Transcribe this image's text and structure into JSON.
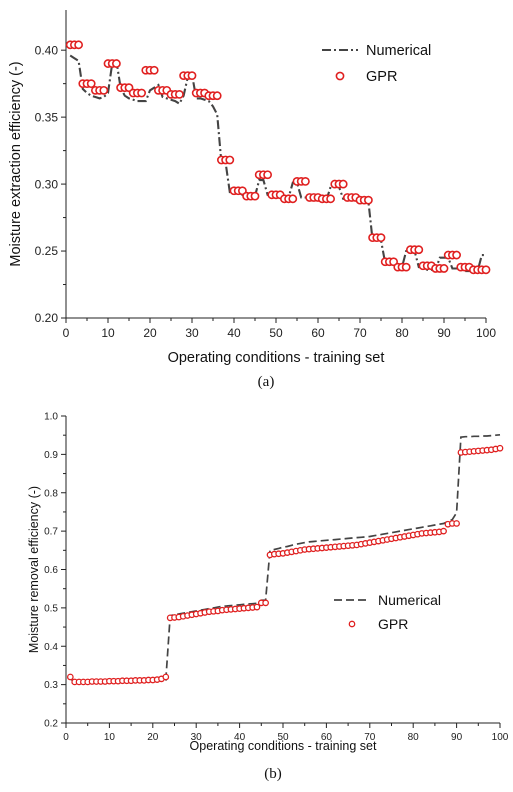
{
  "chart_data": [
    {
      "type": "line",
      "caption": "(a)",
      "xlabel": "Operating conditions - training set",
      "ylabel": "Moisture extraction efficiency (-)",
      "xlim": [
        0,
        100
      ],
      "ylim": [
        0.2,
        0.43
      ],
      "xticks": [
        "0",
        "10",
        "20",
        "30",
        "40",
        "50",
        "60",
        "70",
        "80",
        "90",
        "100"
      ],
      "yticks": [
        "0.20",
        "0.25",
        "0.30",
        "0.35",
        "0.40"
      ],
      "legend_position": "top-right",
      "series": [
        {
          "name": "Numerical",
          "style": "dash-dot",
          "color": "#444444",
          "x": [
            1,
            2,
            3,
            4,
            5,
            6,
            7,
            8,
            9,
            10,
            11,
            12,
            13,
            14,
            15,
            16,
            17,
            18,
            19,
            20,
            21,
            22,
            23,
            24,
            25,
            26,
            27,
            28,
            29,
            30,
            31,
            32,
            33,
            34,
            35,
            36,
            37,
            38,
            39,
            40,
            41,
            42,
            43,
            44,
            45,
            46,
            47,
            48,
            49,
            50,
            51,
            52,
            53,
            54,
            55,
            56,
            57,
            58,
            59,
            60,
            61,
            62,
            63,
            64,
            65,
            66,
            67,
            68,
            69,
            70,
            71,
            72,
            73,
            74,
            75,
            76,
            77,
            78,
            79,
            80,
            81,
            82,
            83,
            84,
            85,
            86,
            87,
            88,
            89,
            90,
            91,
            92,
            93,
            94,
            95,
            96,
            97,
            98,
            99,
            100
          ],
          "y": [
            0.396,
            0.394,
            0.392,
            0.371,
            0.368,
            0.366,
            0.365,
            0.364,
            0.365,
            0.368,
            0.39,
            0.392,
            0.372,
            0.366,
            0.364,
            0.363,
            0.362,
            0.362,
            0.362,
            0.37,
            0.372,
            0.374,
            0.365,
            0.364,
            0.363,
            0.362,
            0.36,
            0.366,
            0.38,
            0.382,
            0.364,
            0.364,
            0.363,
            0.362,
            0.358,
            0.352,
            0.316,
            0.316,
            0.294,
            0.294,
            0.294,
            0.292,
            0.292,
            0.291,
            0.291,
            0.303,
            0.303,
            0.292,
            0.292,
            0.292,
            0.29,
            0.29,
            0.29,
            0.301,
            0.301,
            0.29,
            0.29,
            0.29,
            0.289,
            0.288,
            0.288,
            0.288,
            0.298,
            0.298,
            0.298,
            0.289,
            0.289,
            0.289,
            0.288,
            0.287,
            0.287,
            0.287,
            0.258,
            0.258,
            0.258,
            0.241,
            0.241,
            0.24,
            0.238,
            0.238,
            0.25,
            0.25,
            0.25,
            0.238,
            0.238,
            0.236,
            0.236,
            0.236,
            0.245,
            0.245,
            0.245,
            0.237,
            0.237,
            0.237,
            0.235,
            0.235,
            0.235,
            0.235,
            0.247,
            0.247
          ]
        },
        {
          "name": "GPR",
          "style": "marker",
          "color": "#e02020",
          "x": [
            1,
            2,
            3,
            4,
            5,
            6,
            7,
            8,
            9,
            10,
            11,
            12,
            13,
            14,
            15,
            16,
            17,
            18,
            19,
            20,
            21,
            22,
            23,
            24,
            25,
            26,
            27,
            28,
            29,
            30,
            31,
            32,
            33,
            34,
            35,
            36,
            37,
            38,
            39,
            40,
            41,
            42,
            43,
            44,
            45,
            46,
            47,
            48,
            49,
            50,
            51,
            52,
            53,
            54,
            55,
            56,
            57,
            58,
            59,
            60,
            61,
            62,
            63,
            64,
            65,
            66,
            67,
            68,
            69,
            70,
            71,
            72,
            73,
            74,
            75,
            76,
            77,
            78,
            79,
            80,
            81,
            82,
            83,
            84,
            85,
            86,
            87,
            88,
            89,
            90,
            91,
            92,
            93,
            94,
            95,
            96,
            97,
            98,
            99,
            100
          ],
          "y": [
            0.404,
            0.404,
            0.404,
            0.375,
            0.375,
            0.375,
            0.37,
            0.37,
            0.37,
            0.39,
            0.39,
            0.39,
            0.372,
            0.372,
            0.372,
            0.368,
            0.368,
            0.368,
            0.385,
            0.385,
            0.385,
            0.37,
            0.37,
            0.37,
            0.367,
            0.367,
            0.367,
            0.381,
            0.381,
            0.381,
            0.368,
            0.368,
            0.368,
            0.366,
            0.366,
            0.366,
            0.318,
            0.318,
            0.318,
            0.295,
            0.295,
            0.295,
            0.291,
            0.291,
            0.291,
            0.307,
            0.307,
            0.307,
            0.292,
            0.292,
            0.292,
            0.289,
            0.289,
            0.289,
            0.302,
            0.302,
            0.302,
            0.29,
            0.29,
            0.29,
            0.289,
            0.289,
            0.289,
            0.3,
            0.3,
            0.3,
            0.29,
            0.29,
            0.29,
            0.288,
            0.288,
            0.288,
            0.26,
            0.26,
            0.26,
            0.242,
            0.242,
            0.242,
            0.238,
            0.238,
            0.238,
            0.251,
            0.251,
            0.251,
            0.239,
            0.239,
            0.239,
            0.237,
            0.237,
            0.237,
            0.247,
            0.247,
            0.247,
            0.238,
            0.238,
            0.238,
            0.236,
            0.236,
            0.236,
            0.236
          ]
        }
      ]
    },
    {
      "type": "line",
      "caption": "(b)",
      "xlabel": "Operating conditions - training set",
      "ylabel": "Moisture removal efficiency (-)",
      "xlim": [
        0,
        100
      ],
      "ylim": [
        0.2,
        1.0
      ],
      "xticks": [
        "0",
        "10",
        "20",
        "30",
        "40",
        "50",
        "60",
        "70",
        "80",
        "90",
        "100"
      ],
      "yticks": [
        "0.2",
        "0.3",
        "0.4",
        "0.5",
        "0.6",
        "0.7",
        "0.8",
        "0.9",
        "1.0"
      ],
      "legend_position": "center-right",
      "series": [
        {
          "name": "Numerical",
          "style": "dash",
          "color": "#444444",
          "x": [
            1,
            2,
            3,
            4,
            5,
            6,
            7,
            8,
            9,
            10,
            11,
            12,
            13,
            14,
            15,
            16,
            17,
            18,
            19,
            20,
            21,
            22,
            23,
            24,
            25,
            26,
            27,
            28,
            29,
            30,
            31,
            32,
            33,
            34,
            35,
            36,
            37,
            38,
            39,
            40,
            41,
            42,
            43,
            44,
            45,
            46,
            47,
            48,
            49,
            50,
            51,
            52,
            53,
            54,
            55,
            56,
            57,
            58,
            59,
            60,
            61,
            62,
            63,
            64,
            65,
            66,
            67,
            68,
            69,
            70,
            71,
            72,
            73,
            74,
            75,
            76,
            77,
            78,
            79,
            80,
            81,
            82,
            83,
            84,
            85,
            86,
            87,
            88,
            89,
            90,
            91,
            92,
            93,
            94,
            95,
            96,
            97,
            98,
            99,
            100
          ],
          "y": [
            0.315,
            0.308,
            0.308,
            0.308,
            0.308,
            0.308,
            0.308,
            0.308,
            0.309,
            0.309,
            0.309,
            0.309,
            0.31,
            0.31,
            0.31,
            0.31,
            0.31,
            0.311,
            0.311,
            0.311,
            0.311,
            0.312,
            0.312,
            0.48,
            0.482,
            0.484,
            0.486,
            0.488,
            0.49,
            0.492,
            0.494,
            0.496,
            0.498,
            0.5,
            0.502,
            0.504,
            0.505,
            0.506,
            0.507,
            0.508,
            0.509,
            0.51,
            0.511,
            0.512,
            0.52,
            0.52,
            0.65,
            0.652,
            0.655,
            0.658,
            0.66,
            0.663,
            0.666,
            0.668,
            0.67,
            0.672,
            0.673,
            0.674,
            0.675,
            0.676,
            0.677,
            0.678,
            0.679,
            0.68,
            0.681,
            0.682,
            0.683,
            0.684,
            0.685,
            0.686,
            0.688,
            0.69,
            0.692,
            0.694,
            0.696,
            0.698,
            0.7,
            0.702,
            0.704,
            0.706,
            0.708,
            0.71,
            0.712,
            0.714,
            0.716,
            0.718,
            0.72,
            0.725,
            0.73,
            0.748,
            0.945,
            0.946,
            0.946,
            0.947,
            0.947,
            0.948,
            0.948,
            0.949,
            0.95,
            0.951
          ]
        },
        {
          "name": "GPR",
          "style": "marker",
          "color": "#e02020",
          "x": [
            1,
            2,
            3,
            4,
            5,
            6,
            7,
            8,
            9,
            10,
            11,
            12,
            13,
            14,
            15,
            16,
            17,
            18,
            19,
            20,
            21,
            22,
            23,
            24,
            25,
            26,
            27,
            28,
            29,
            30,
            31,
            32,
            33,
            34,
            35,
            36,
            37,
            38,
            39,
            40,
            41,
            42,
            43,
            44,
            45,
            46,
            47,
            48,
            49,
            50,
            51,
            52,
            53,
            54,
            55,
            56,
            57,
            58,
            59,
            60,
            61,
            62,
            63,
            64,
            65,
            66,
            67,
            68,
            69,
            70,
            71,
            72,
            73,
            74,
            75,
            76,
            77,
            78,
            79,
            80,
            81,
            82,
            83,
            84,
            85,
            86,
            87,
            88,
            89,
            90,
            91,
            92,
            93,
            94,
            95,
            96,
            97,
            98,
            99,
            100
          ],
          "y": [
            0.32,
            0.307,
            0.307,
            0.307,
            0.307,
            0.308,
            0.308,
            0.308,
            0.308,
            0.309,
            0.309,
            0.309,
            0.31,
            0.31,
            0.31,
            0.311,
            0.311,
            0.311,
            0.312,
            0.312,
            0.313,
            0.315,
            0.32,
            0.474,
            0.475,
            0.476,
            0.478,
            0.48,
            0.482,
            0.484,
            0.486,
            0.488,
            0.49,
            0.491,
            0.492,
            0.494,
            0.495,
            0.496,
            0.497,
            0.498,
            0.499,
            0.5,
            0.501,
            0.502,
            0.513,
            0.513,
            0.638,
            0.64,
            0.641,
            0.642,
            0.644,
            0.646,
            0.648,
            0.65,
            0.652,
            0.653,
            0.654,
            0.655,
            0.656,
            0.657,
            0.658,
            0.659,
            0.66,
            0.661,
            0.662,
            0.663,
            0.664,
            0.666,
            0.668,
            0.67,
            0.672,
            0.674,
            0.676,
            0.678,
            0.68,
            0.682,
            0.684,
            0.686,
            0.688,
            0.69,
            0.692,
            0.694,
            0.695,
            0.696,
            0.697,
            0.698,
            0.7,
            0.718,
            0.72,
            0.72,
            0.905,
            0.906,
            0.907,
            0.908,
            0.909,
            0.91,
            0.911,
            0.912,
            0.914,
            0.916
          ]
        }
      ]
    }
  ]
}
